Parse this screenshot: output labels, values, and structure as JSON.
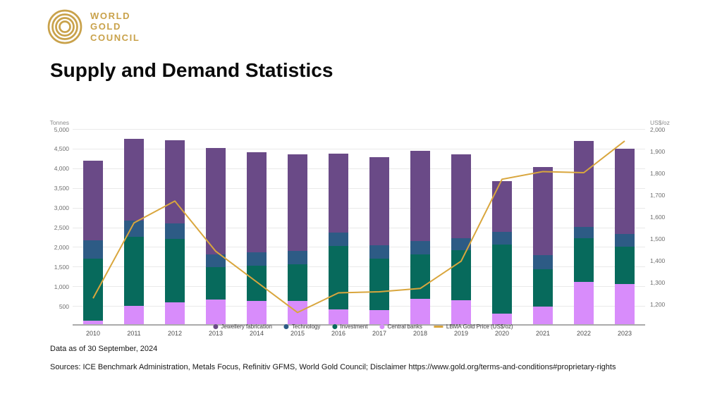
{
  "logo": {
    "lines": [
      "WORLD",
      "GOLD",
      "COUNCIL"
    ],
    "color": "#c9a24b"
  },
  "page_title": "Supply and Demand Statistics",
  "footnotes": {
    "data_as_of": "Data as of 30 September, 2024",
    "sources": "Sources: ICE Benchmark Administration, Metals Focus, Refinitiv GFMS, World Gold Council; Disclaimer https://www.gold.org/terms-and-conditions#proprietary-rights"
  },
  "colors": {
    "jewellery": "#6a4a87",
    "technology": "#2d5b85",
    "investment": "#076a5c",
    "central_banks": "#d88cfb",
    "gold_line": "#d9a63d",
    "gridline": "#e9e9e9",
    "baseline": "#ababab",
    "logo_gold": "#c9a24b"
  },
  "chart_data": {
    "type": "bar",
    "subtype": "stacked-bars-with-line-overlay",
    "title": "Supply and Demand Statistics",
    "grid": true,
    "legend_position": "bottom-center",
    "categories": [
      "2010",
      "2011",
      "2012",
      "2013",
      "2014",
      "2015",
      "2016",
      "2017",
      "2018",
      "2019",
      "2020",
      "2021",
      "2022",
      "2023"
    ],
    "series": [
      {
        "name": "Jewellery fabrication",
        "color": "#6a4a87",
        "textured": false,
        "values": [
          2020,
          2075,
          2130,
          2715,
          2555,
          2465,
          2005,
          2250,
          2305,
          2145,
          1295,
          2235,
          2180,
          2165
        ]
      },
      {
        "name": "Technology",
        "color": "#2d5b85",
        "textured": true,
        "values": [
          460,
          425,
          390,
          320,
          335,
          335,
          335,
          335,
          335,
          300,
          320,
          355,
          300,
          320
        ]
      },
      {
        "name": "Investment",
        "color": "#076a5c",
        "textured": true,
        "values": [
          1580,
          1755,
          1615,
          835,
          885,
          940,
          1615,
          1310,
          1135,
          1275,
          1755,
          955,
          1100,
          940
        ]
      },
      {
        "name": "Central banks",
        "color": "#d88cfb",
        "textured": false,
        "values": [
          90,
          460,
          550,
          620,
          600,
          585,
          375,
          355,
          640,
          605,
          265,
          445,
          1080,
          1030
        ]
      }
    ],
    "stack_order_bottom_up": [
      "Central banks",
      "Investment",
      "Technology",
      "Jewellery fabrication"
    ],
    "line_series": {
      "name": "LBMA Gold Price (US$/oz)",
      "color": "#d9a63d",
      "axis": "right",
      "values": [
        1225,
        1570,
        1670,
        1440,
        1300,
        1160,
        1250,
        1255,
        1270,
        1395,
        1770,
        1805,
        1800,
        1945
      ]
    },
    "left_axis": {
      "label": "Tonnes",
      "min": 0,
      "max": 5000,
      "tick_step": 500,
      "ticks": [
        "5,000",
        "4,500",
        "4,000",
        "3,500",
        "3,000",
        "2,500",
        "2,000",
        "1,500",
        "1,000",
        "500"
      ]
    },
    "right_axis": {
      "label": "US$/oz",
      "min": 1100,
      "max": 2000,
      "tick_step": 100,
      "ticks": [
        "2,000",
        "1,900",
        "1,800",
        "1,700",
        "1,600",
        "1,500",
        "1,400",
        "1,300",
        "1,200"
      ]
    }
  }
}
